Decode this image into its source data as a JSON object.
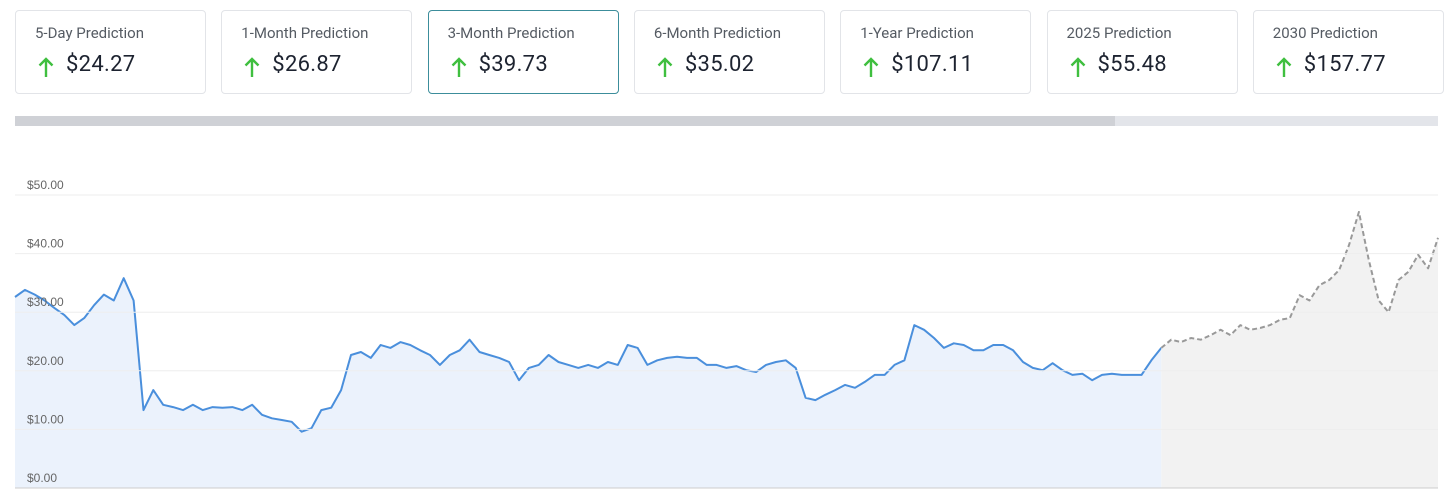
{
  "cards": [
    {
      "label": "5-Day Prediction",
      "value": "$24.27"
    },
    {
      "label": "1-Month Prediction",
      "value": "$26.87"
    },
    {
      "label": "3-Month Prediction",
      "value": "$39.73",
      "selected": true
    },
    {
      "label": "6-Month Prediction",
      "value": "$35.02"
    },
    {
      "label": "1-Year Prediction",
      "value": "$107.11"
    },
    {
      "label": "2025 Prediction",
      "value": "$55.48"
    },
    {
      "label": "2030 Prediction",
      "value": "$157.77"
    }
  ],
  "chart_data": {
    "type": "line",
    "ylim": [
      0,
      50
    ],
    "yticks": [
      {
        "value": 0,
        "label": "$0.00"
      },
      {
        "value": 10,
        "label": "$10.00"
      },
      {
        "value": 20,
        "label": "$20.00"
      },
      {
        "value": 30,
        "label": "$30.00"
      },
      {
        "value": 40,
        "label": "$40.00"
      },
      {
        "value": 50,
        "label": "$50.00"
      }
    ],
    "grid": true,
    "series": [
      {
        "color": "#4a8fdc",
        "fill": "#ebf2fc",
        "dashed": false,
        "values": [
          32.6,
          33.8,
          33,
          32,
          30.7,
          29.5,
          27.8,
          29,
          31.2,
          33,
          32,
          35.8,
          32,
          13.3,
          16.7,
          14.2,
          13.8,
          13.3,
          14.2,
          13.3,
          13.8,
          13.7,
          13.8,
          13.3,
          14.2,
          12.5,
          11.9,
          11.6,
          11.3,
          9.6,
          10.2,
          13.3,
          13.7,
          16.7,
          22.7,
          23.2,
          22.2,
          24.4,
          23.9,
          24.9,
          24.4,
          23.5,
          22.7,
          21,
          22.7,
          23.5,
          25.3,
          23.2,
          22.7,
          22.2,
          21.5,
          18.4,
          20.5,
          21,
          22.7,
          21.5,
          21,
          20.5,
          21,
          20.5,
          21.5,
          21,
          24.4,
          23.9,
          21,
          21.8,
          22.2,
          22.4,
          22.2,
          22.2,
          21,
          21,
          20.5,
          20.8,
          20.1,
          19.8,
          21,
          21.5,
          21.8,
          20.5,
          15.4,
          15,
          15.9,
          16.7,
          17.6,
          17.1,
          18.1,
          19.3,
          19.3,
          21,
          21.8,
          27.8,
          27,
          25.6,
          23.9,
          24.7,
          24.4,
          23.5,
          23.5,
          24.4,
          24.4,
          23.5,
          21.5,
          20.5,
          20.1,
          21.3,
          20.1,
          19.3,
          19.5,
          18.4,
          19.3,
          19.5,
          19.3,
          19.3,
          19.3,
          21.8,
          23.9,
          null,
          null,
          null,
          null,
          null,
          null,
          null,
          null,
          null,
          null,
          null,
          null,
          null,
          null,
          null,
          null,
          null,
          null,
          null,
          null,
          null,
          null,
          null,
          null,
          null,
          null,
          null,
          null
        ]
      },
      {
        "color": "#999999",
        "fill": "#f2f2f2",
        "dashed": true,
        "values": [
          null,
          null,
          null,
          null,
          null,
          null,
          null,
          null,
          null,
          null,
          null,
          null,
          null,
          null,
          null,
          null,
          null,
          null,
          null,
          null,
          null,
          null,
          null,
          null,
          null,
          null,
          null,
          null,
          null,
          null,
          null,
          null,
          null,
          null,
          null,
          null,
          null,
          null,
          null,
          null,
          null,
          null,
          null,
          null,
          null,
          null,
          null,
          null,
          null,
          null,
          null,
          null,
          null,
          null,
          null,
          null,
          null,
          null,
          null,
          null,
          null,
          null,
          null,
          null,
          null,
          null,
          null,
          null,
          null,
          null,
          null,
          null,
          null,
          null,
          null,
          null,
          null,
          null,
          null,
          null,
          null,
          null,
          null,
          null,
          null,
          null,
          null,
          null,
          null,
          null,
          null,
          null,
          null,
          null,
          null,
          null,
          null,
          null,
          null,
          null,
          null,
          null,
          null,
          null,
          null,
          null,
          null,
          null,
          null,
          null,
          null,
          null,
          null,
          null,
          null,
          null,
          23.9,
          25.3,
          24.9,
          25.6,
          25.3,
          26.1,
          27,
          26.1,
          27.8,
          27,
          27.3,
          27.8,
          28.7,
          29,
          32.9,
          32,
          34.6,
          35.5,
          37.2,
          41.5,
          47.1,
          38.9,
          32,
          30,
          35.5,
          36.9,
          39.8,
          37.5,
          42.7
        ]
      }
    ]
  }
}
